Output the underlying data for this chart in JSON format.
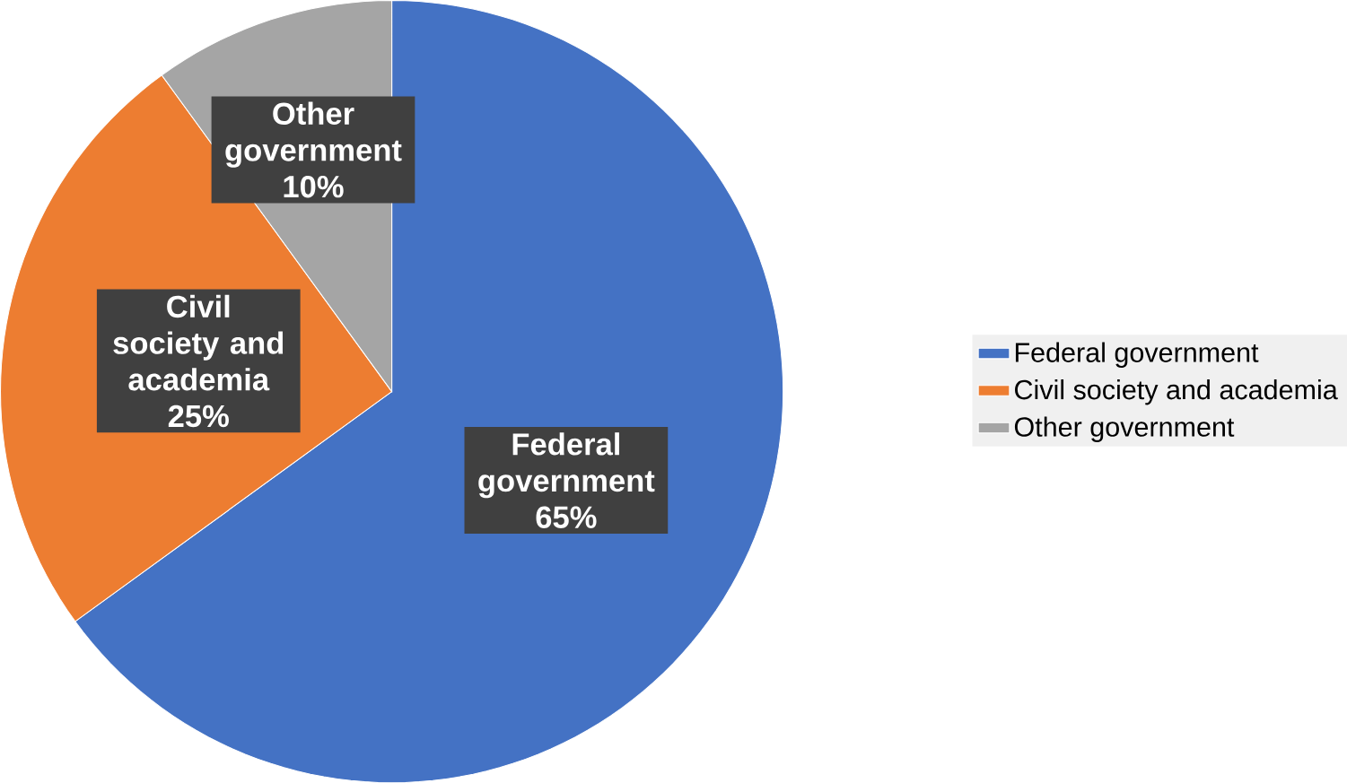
{
  "chart_data": {
    "type": "pie",
    "categories": [
      "Federal government",
      "Civil society and academia",
      "Other government"
    ],
    "values": [
      65,
      25,
      10
    ],
    "value_labels": [
      "65%",
      "25%",
      "10%"
    ],
    "colors": [
      "#4472c4",
      "#ed7d31",
      "#a5a5a5"
    ],
    "legend": "right"
  }
}
